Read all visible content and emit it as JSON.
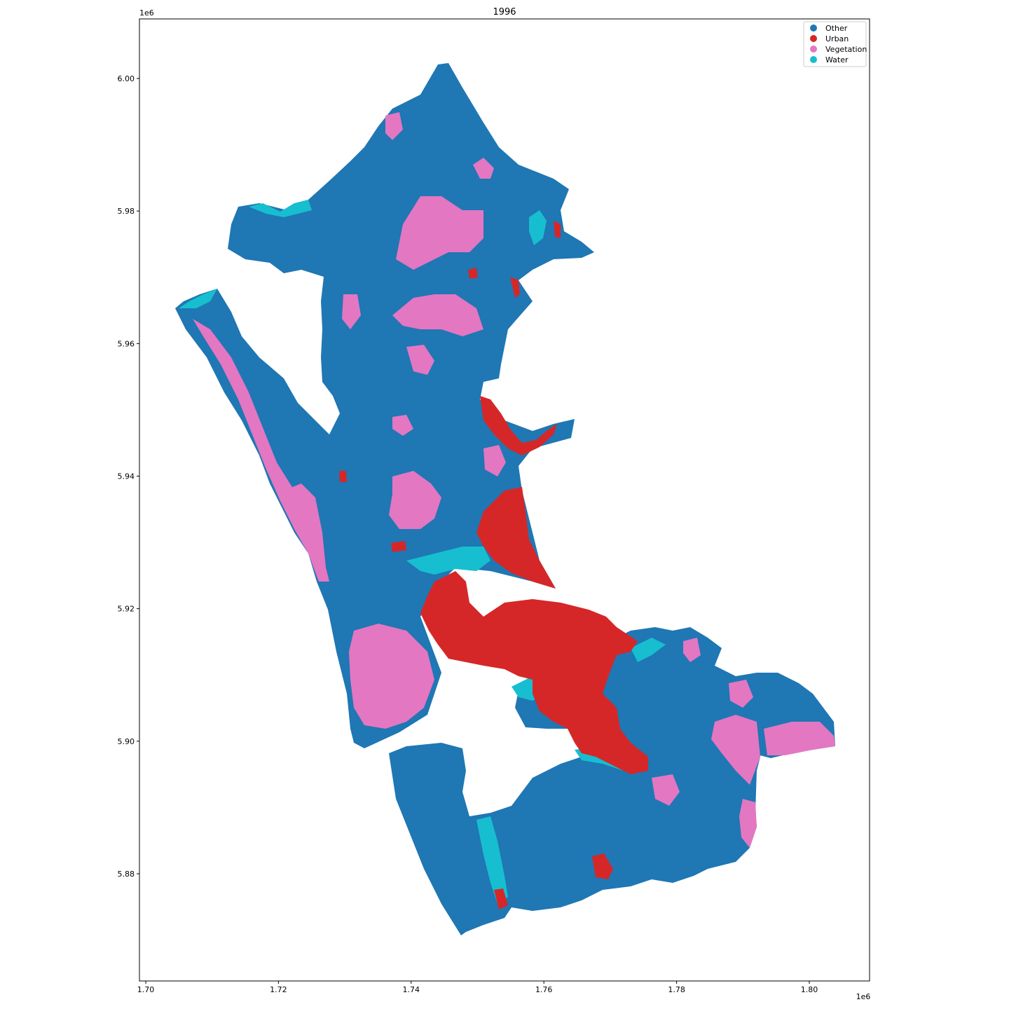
{
  "title": "1996",
  "x_offset_label": "1e6",
  "y_offset_label": "1e6",
  "x_ticks": [
    {
      "value": 1.7,
      "label": "1.70"
    },
    {
      "value": 1.72,
      "label": "1.72"
    },
    {
      "value": 1.74,
      "label": "1.74"
    },
    {
      "value": 1.76,
      "label": "1.76"
    },
    {
      "value": 1.78,
      "label": "1.78"
    },
    {
      "value": 1.8,
      "label": "1.80"
    }
  ],
  "y_ticks": [
    {
      "value": 5.88,
      "label": "5.88"
    },
    {
      "value": 5.9,
      "label": "5.90"
    },
    {
      "value": 5.92,
      "label": "5.92"
    },
    {
      "value": 5.94,
      "label": "5.94"
    },
    {
      "value": 5.96,
      "label": "5.96"
    },
    {
      "value": 5.98,
      "label": "5.98"
    },
    {
      "value": 6.0,
      "label": "6.00"
    }
  ],
  "legend": {
    "placement": "top-right",
    "items": [
      {
        "label": "Other",
        "color": "#1f77b4"
      },
      {
        "label": "Urban",
        "color": "#d62728"
      },
      {
        "label": "Vegetation",
        "color": "#e377c2"
      },
      {
        "label": "Water",
        "color": "#17becf"
      }
    ]
  },
  "colors": {
    "other": "#1f77b4",
    "urban": "#d62728",
    "vegetation": "#e377c2",
    "water": "#17becf"
  }
}
